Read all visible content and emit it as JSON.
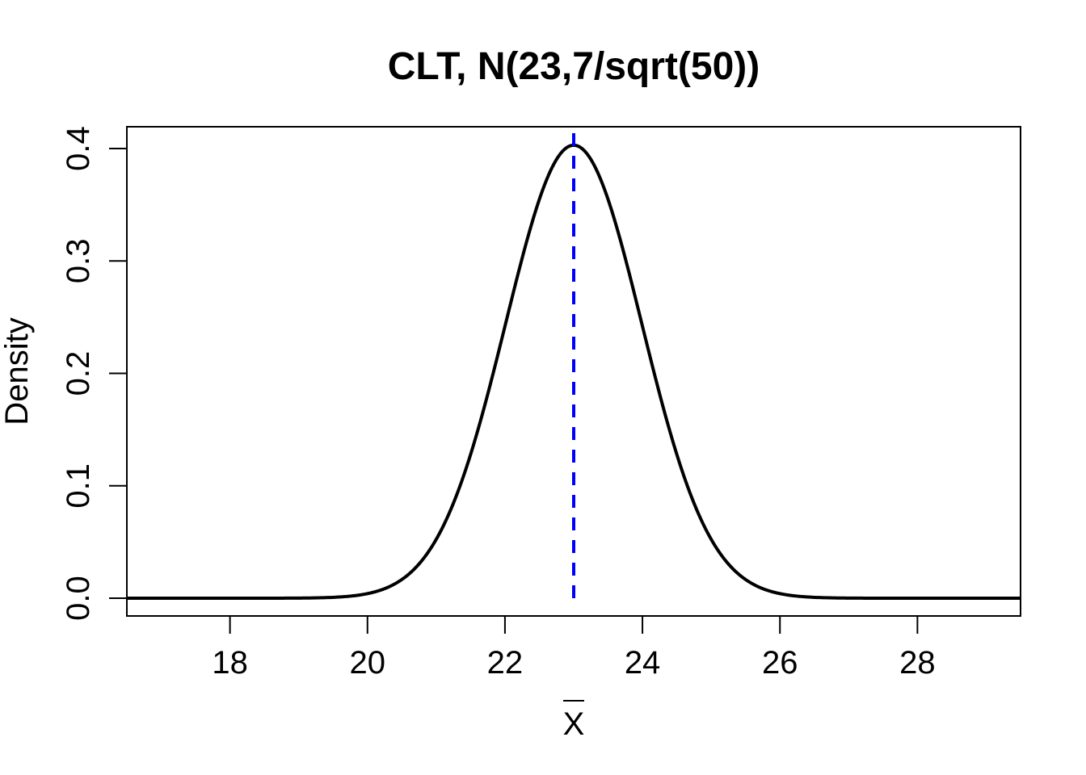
{
  "chart_data": {
    "type": "line",
    "title": "CLT, N(23,7/sqrt(50))",
    "xlabel": "X",
    "xlabel_overbar": true,
    "ylabel": "Density",
    "xlim": [
      16.5,
      29.5
    ],
    "ylim": [
      0,
      0.42
    ],
    "xticks": [
      18,
      20,
      22,
      24,
      26,
      28
    ],
    "yticks": [
      0.0,
      0.1,
      0.2,
      0.3,
      0.4
    ],
    "xtick_labels": [
      "18",
      "20",
      "22",
      "24",
      "26",
      "28"
    ],
    "ytick_labels": [
      "0.0",
      "0.1",
      "0.2",
      "0.3",
      "0.4"
    ],
    "grid": false,
    "series": [
      {
        "color": "#000000",
        "style": "solid",
        "distribution": "normal",
        "mean": 23,
        "sd": 0.98995,
        "x_range": [
          16.5,
          29.5
        ]
      }
    ],
    "reference_lines": [
      {
        "orientation": "vertical",
        "x": 23,
        "color": "#0000ff",
        "style": "dashed",
        "y_range": [
          0,
          0.42
        ]
      }
    ]
  }
}
